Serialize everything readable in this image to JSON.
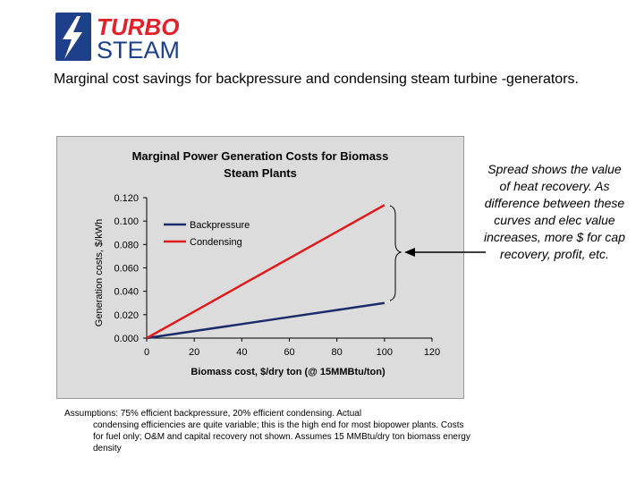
{
  "brand": {
    "line1": "TURBO",
    "line2": "STEAM",
    "color_accent": "#e0222b",
    "color_dark": "#1e3f8a"
  },
  "slide_title": "Marginal cost savings for backpressure and condensing steam turbine -generators.",
  "side_note": "Spread shows the value of heat recovery.  As difference between these curves and elec value increases, more $ for cap recovery, profit, etc.",
  "footnote": {
    "line1": "Assumptions: 75% efficient backpressure, 20% efficient condensing.  Actual",
    "rest": "condensing efficiencies are quite variable; this is the high end for most biopower plants.  Costs for fuel only; O&M and capital recovery not shown. Assumes 15 MMBtu/dry ton biomass energy density"
  },
  "chart_data": {
    "type": "line",
    "title": "Marginal Power Generation Costs for Biomass Steam Plants",
    "title_lines": [
      "Marginal Power Generation Costs for Biomass",
      "Steam Plants"
    ],
    "xlabel": "Biomass cost, $/dry ton (@ 15MMBtu/ton)",
    "ylabel": "Generation costs, $/kWh",
    "xlim": [
      0,
      120
    ],
    "ylim": [
      0,
      0.12
    ],
    "x_ticks": [
      0,
      20,
      40,
      60,
      80,
      100,
      120
    ],
    "y_ticks": [
      "0.000",
      "0.020",
      "0.040",
      "0.060",
      "0.080",
      "0.100",
      "0.120"
    ],
    "y_tick_values": [
      0,
      0.02,
      0.04,
      0.06,
      0.08,
      0.1,
      0.12
    ],
    "legend_position": "top-left",
    "series": [
      {
        "name": "Backpressure",
        "color": "#1b2a6b",
        "x": [
          0,
          20,
          40,
          60,
          80,
          100
        ],
        "y": [
          0,
          0.006,
          0.012,
          0.018,
          0.024,
          0.03
        ]
      },
      {
        "name": "Condensing",
        "color": "#e01b1b",
        "x": [
          0,
          20,
          40,
          60,
          80,
          100
        ],
        "y": [
          0,
          0.0227,
          0.0455,
          0.0682,
          0.0909,
          0.1137
        ]
      }
    ],
    "grid": false
  }
}
